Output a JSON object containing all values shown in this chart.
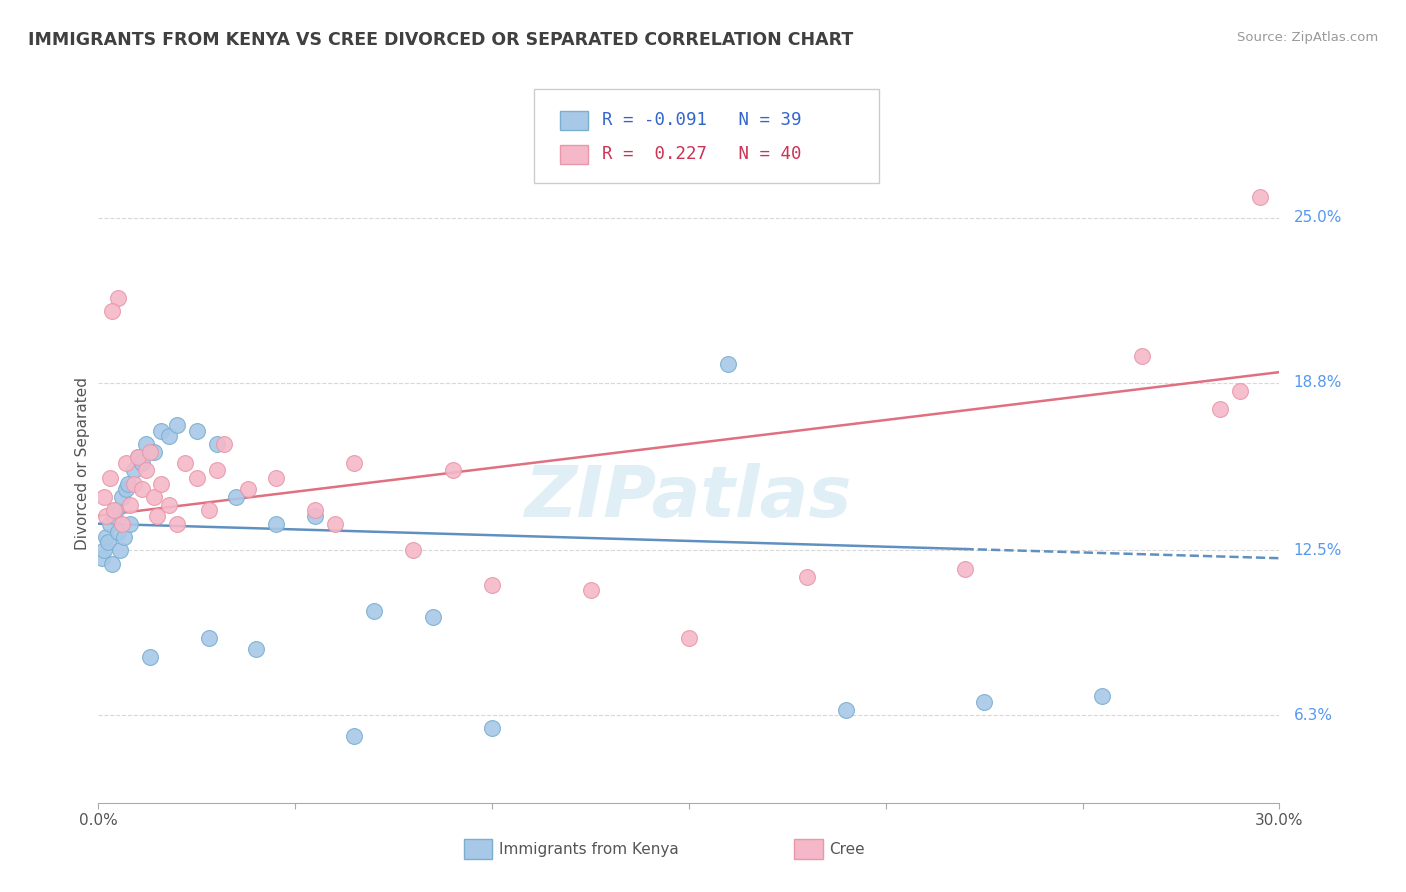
{
  "title": "IMMIGRANTS FROM KENYA VS CREE DIVORCED OR SEPARATED CORRELATION CHART",
  "source": "Source: ZipAtlas.com",
  "ylabel": "Divorced or Separated",
  "xlim": [
    0.0,
    30.0
  ],
  "ylim": [
    3.0,
    28.5
  ],
  "y_ticks_right": [
    6.3,
    12.5,
    18.8,
    25.0
  ],
  "y_tick_labels_right": [
    "6.3%",
    "12.5%",
    "18.8%",
    "25.0%"
  ],
  "watermark": "ZIPatlas",
  "legend_r1": "-0.091",
  "legend_n1": "39",
  "legend_r2": "0.227",
  "legend_n2": "40",
  "color_blue": "#a8c8e8",
  "color_pink": "#f5b8c8",
  "color_blue_edge": "#7aafd0",
  "color_pink_edge": "#e898a8",
  "color_blue_line": "#6090c0",
  "color_pink_line": "#e07080",
  "color_title": "#404040",
  "series1_name": "Immigrants from Kenya",
  "series2_name": "Cree",
  "blue_points": [
    [
      0.1,
      12.2
    ],
    [
      0.15,
      12.5
    ],
    [
      0.2,
      13.0
    ],
    [
      0.25,
      12.8
    ],
    [
      0.3,
      13.5
    ],
    [
      0.35,
      12.0
    ],
    [
      0.4,
      13.8
    ],
    [
      0.45,
      14.0
    ],
    [
      0.5,
      13.2
    ],
    [
      0.55,
      12.5
    ],
    [
      0.6,
      14.5
    ],
    [
      0.65,
      13.0
    ],
    [
      0.7,
      14.8
    ],
    [
      0.75,
      15.0
    ],
    [
      0.8,
      13.5
    ],
    [
      0.9,
      15.5
    ],
    [
      1.0,
      16.0
    ],
    [
      1.1,
      15.8
    ],
    [
      1.2,
      16.5
    ],
    [
      1.4,
      16.2
    ],
    [
      1.6,
      17.0
    ],
    [
      1.8,
      16.8
    ],
    [
      2.0,
      17.2
    ],
    [
      2.5,
      17.0
    ],
    [
      3.0,
      16.5
    ],
    [
      3.5,
      14.5
    ],
    [
      4.5,
      13.5
    ],
    [
      5.5,
      13.8
    ],
    [
      7.0,
      10.2
    ],
    [
      8.5,
      10.0
    ],
    [
      16.0,
      19.5
    ],
    [
      19.0,
      6.5
    ],
    [
      22.5,
      6.8
    ],
    [
      25.5,
      7.0
    ],
    [
      1.3,
      8.5
    ],
    [
      2.8,
      9.2
    ],
    [
      4.0,
      8.8
    ],
    [
      6.5,
      5.5
    ],
    [
      10.0,
      5.8
    ]
  ],
  "pink_points": [
    [
      0.15,
      14.5
    ],
    [
      0.2,
      13.8
    ],
    [
      0.3,
      15.2
    ],
    [
      0.4,
      14.0
    ],
    [
      0.5,
      22.0
    ],
    [
      0.6,
      13.5
    ],
    [
      0.7,
      15.8
    ],
    [
      0.8,
      14.2
    ],
    [
      0.9,
      15.0
    ],
    [
      1.0,
      16.0
    ],
    [
      1.1,
      14.8
    ],
    [
      1.2,
      15.5
    ],
    [
      1.3,
      16.2
    ],
    [
      1.4,
      14.5
    ],
    [
      1.5,
      13.8
    ],
    [
      1.6,
      15.0
    ],
    [
      1.8,
      14.2
    ],
    [
      2.0,
      13.5
    ],
    [
      2.2,
      15.8
    ],
    [
      2.5,
      15.2
    ],
    [
      2.8,
      14.0
    ],
    [
      3.0,
      15.5
    ],
    [
      3.2,
      16.5
    ],
    [
      3.8,
      14.8
    ],
    [
      4.5,
      15.2
    ],
    [
      5.5,
      14.0
    ],
    [
      6.5,
      15.8
    ],
    [
      0.35,
      21.5
    ],
    [
      9.0,
      15.5
    ],
    [
      10.0,
      11.2
    ],
    [
      12.5,
      11.0
    ],
    [
      18.0,
      11.5
    ],
    [
      22.0,
      11.8
    ],
    [
      15.0,
      9.2
    ],
    [
      6.0,
      13.5
    ],
    [
      8.0,
      12.5
    ],
    [
      28.5,
      17.8
    ],
    [
      29.0,
      18.5
    ],
    [
      26.5,
      19.8
    ],
    [
      29.5,
      25.8
    ]
  ],
  "blue_line_x": [
    0.0,
    30.0
  ],
  "blue_line_y": [
    13.5,
    12.2
  ],
  "pink_line_x": [
    0.0,
    30.0
  ],
  "pink_line_y": [
    13.8,
    19.2
  ],
  "blue_line_solid_end": 22.0,
  "grid_color": "#d8d8d8"
}
